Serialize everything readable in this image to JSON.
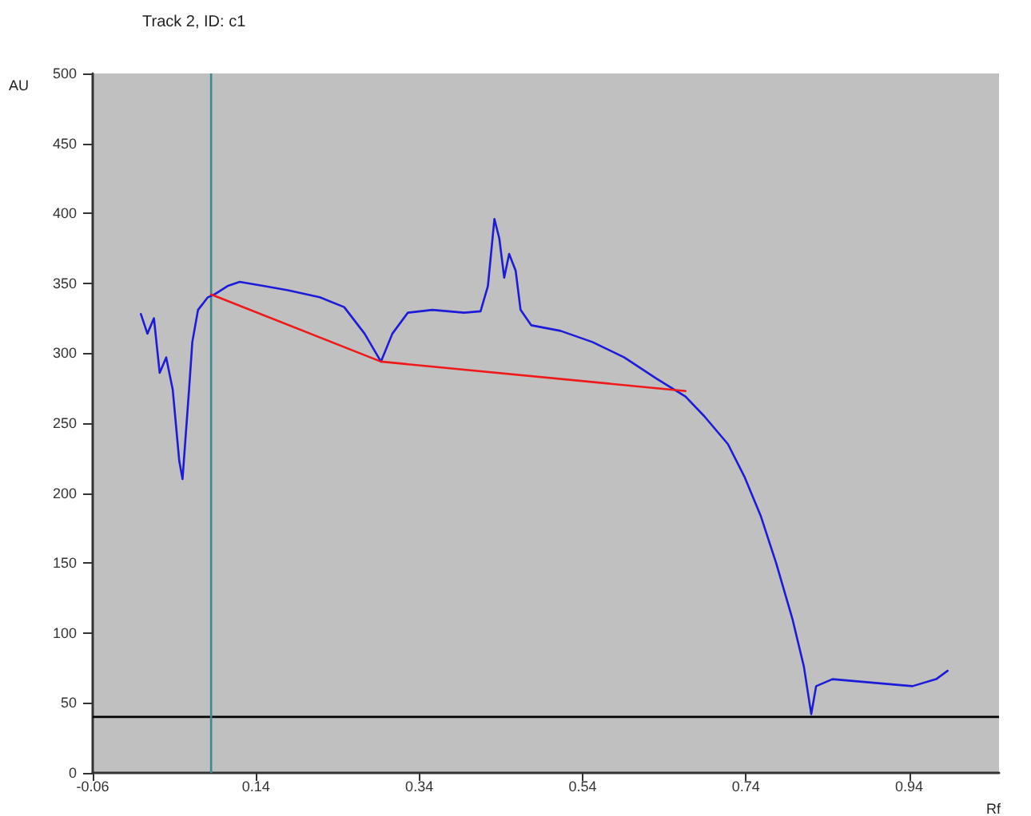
{
  "chart_data": {
    "type": "line",
    "title": "Track 2, ID: c1",
    "xlabel": "Rf",
    "ylabel": "AU",
    "xlim": [
      -0.06,
      1.05
    ],
    "xticks": [
      -0.06,
      0.14,
      0.34,
      0.54,
      0.74,
      0.94
    ],
    "ylim": [
      0,
      500
    ],
    "yticks": [
      0,
      50,
      100,
      150,
      200,
      250,
      300,
      350,
      400,
      450,
      500
    ],
    "grid": false,
    "marker": "none",
    "line_style": "solid",
    "series": [
      {
        "color": "#1c1cd8",
        "x": [
          -0.001,
          0.007,
          0.015,
          0.022,
          0.03,
          0.038,
          0.046,
          0.05,
          0.058,
          0.062,
          0.069,
          0.081,
          0.089,
          0.105,
          0.12,
          0.15,
          0.179,
          0.218,
          0.248,
          0.273,
          0.293,
          0.307,
          0.326,
          0.356,
          0.395,
          0.415,
          0.424,
          0.432,
          0.438,
          0.444,
          0.45,
          0.458,
          0.464,
          0.477,
          0.513,
          0.552,
          0.591,
          0.63,
          0.666,
          0.689,
          0.718,
          0.738,
          0.758,
          0.777,
          0.797,
          0.811,
          0.82,
          0.826,
          0.846,
          0.885,
          0.944,
          0.973,
          0.987
        ],
        "values": [
          328,
          314,
          325,
          286,
          297,
          274,
          223,
          210,
          274,
          308,
          331,
          340,
          342,
          348,
          351,
          348,
          345,
          340,
          333,
          314,
          294,
          314,
          329,
          331,
          329,
          330,
          348,
          396,
          382,
          354,
          371,
          359,
          331,
          320,
          316,
          308,
          297,
          282,
          269,
          255,
          235,
          212,
          184,
          150,
          110,
          76,
          42,
          62,
          67,
          65,
          62,
          67,
          73
        ]
      },
      {
        "color": "#f01818",
        "x": [
          0.085,
          0.293,
          0.666
        ],
        "values": [
          342,
          294,
          273
        ]
      }
    ],
    "ref_lines": [
      {
        "axis": "y",
        "value": 40,
        "color": "#000000",
        "line_style": "solid"
      },
      {
        "axis": "x",
        "value": 0.085,
        "color": "#3f8a8a",
        "line_style": "solid"
      }
    ]
  }
}
